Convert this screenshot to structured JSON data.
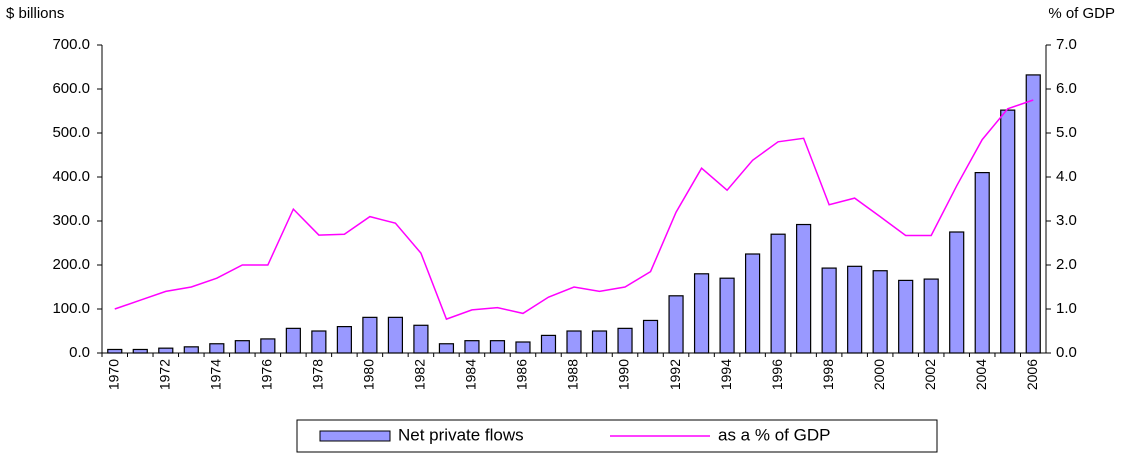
{
  "chart_data": {
    "type": "bar-line",
    "y_label": "$ billions",
    "y2_label": "% of GDP",
    "categories": [
      "1970",
      null,
      "1972",
      null,
      "1974",
      null,
      "1976",
      null,
      "1978",
      null,
      "1980",
      null,
      "1982",
      null,
      "1984",
      null,
      "1986",
      null,
      "1988",
      null,
      "1990",
      null,
      "1992",
      null,
      "1994",
      null,
      "1996",
      null,
      "1998",
      null,
      "2000",
      null,
      "2002",
      null,
      "2004",
      null,
      "2006"
    ],
    "series": [
      {
        "name": "Net private flows",
        "type": "bar",
        "color": "#9999ff",
        "axis": "y",
        "values": [
          8,
          8,
          11,
          14,
          21,
          28,
          32,
          56,
          50,
          60,
          81,
          81,
          63,
          21,
          28,
          28,
          25,
          40,
          50,
          50,
          56,
          74,
          130,
          180,
          170,
          225,
          270,
          292,
          193,
          197,
          187,
          165,
          168,
          275,
          410,
          552,
          632
        ]
      },
      {
        "name": "as a % of GDP",
        "type": "line",
        "color": "#ff00ff",
        "axis": "y2",
        "values": [
          1.0,
          1.2,
          1.4,
          1.5,
          1.7,
          2.0,
          2.0,
          3.27,
          2.68,
          2.7,
          3.1,
          2.95,
          2.27,
          0.77,
          0.98,
          1.03,
          0.9,
          1.27,
          1.5,
          1.4,
          1.5,
          1.85,
          3.2,
          4.2,
          3.7,
          4.38,
          4.8,
          4.88,
          3.37,
          3.52,
          3.1,
          2.67,
          2.67,
          3.8,
          4.85,
          5.55,
          5.75
        ]
      }
    ],
    "ylim": [
      0,
      700
    ],
    "yticks": [
      {
        "value": 0,
        "label": "0.0"
      },
      {
        "value": 100,
        "label": "100.0"
      },
      {
        "value": 200,
        "label": "200.0"
      },
      {
        "value": 300,
        "label": "300.0"
      },
      {
        "value": 400,
        "label": "400.0"
      },
      {
        "value": 500,
        "label": "500.0"
      },
      {
        "value": 600,
        "label": "600.0"
      },
      {
        "value": 700,
        "label": "700.0"
      }
    ],
    "y2lim": [
      0,
      7
    ],
    "y2ticks": [
      {
        "value": 0,
        "label": "0.0"
      },
      {
        "value": 1,
        "label": "1.0"
      },
      {
        "value": 2,
        "label": "2.0"
      },
      {
        "value": 3,
        "label": "3.0"
      },
      {
        "value": 4,
        "label": "4.0"
      },
      {
        "value": 5,
        "label": "5.0"
      },
      {
        "value": 6,
        "label": "6.0"
      },
      {
        "value": 7,
        "label": "7.0"
      }
    ],
    "legend": "bottom"
  }
}
